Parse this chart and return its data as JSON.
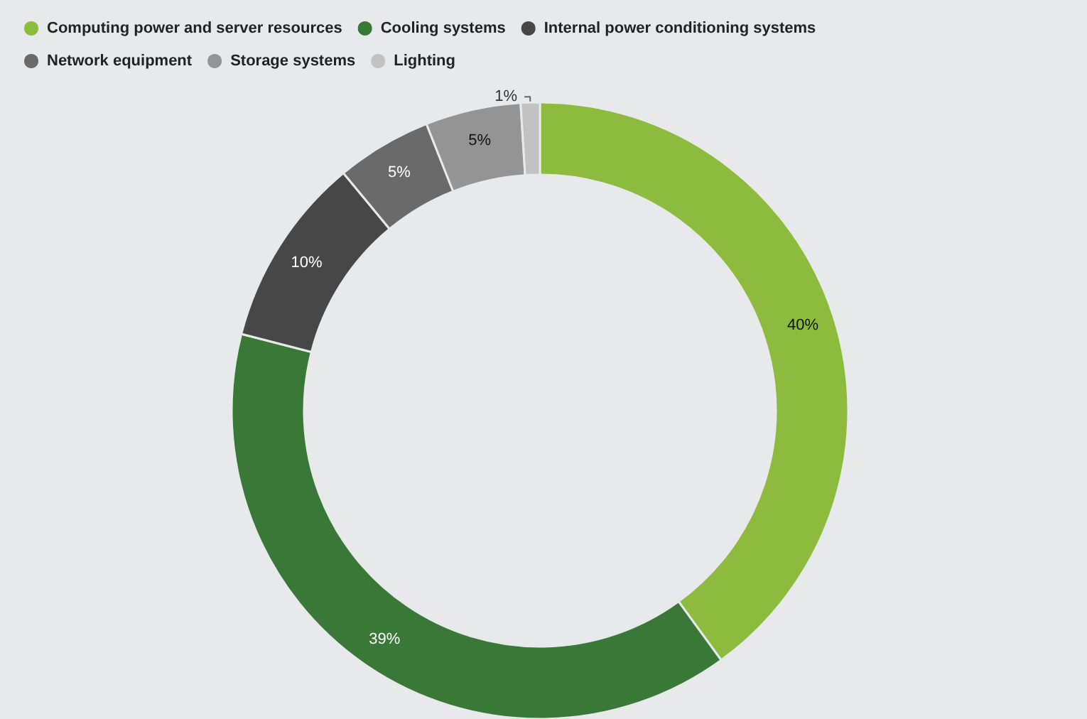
{
  "chart_data": {
    "type": "donut",
    "categories": [
      "Computing power and server resources",
      "Cooling systems",
      "Internal power conditioning systems",
      "Network equipment",
      "Storage systems",
      "Lighting"
    ],
    "values": [
      40,
      39,
      10,
      5,
      5,
      1
    ],
    "colors": [
      "#8dbb3e",
      "#3a7838",
      "#474747",
      "#6a6a6a",
      "#949494",
      "#c2c2c2"
    ],
    "value_labels": [
      "40%",
      "39%",
      "10%",
      "5%",
      "5%",
      "1%"
    ],
    "legend": "top left"
  }
}
